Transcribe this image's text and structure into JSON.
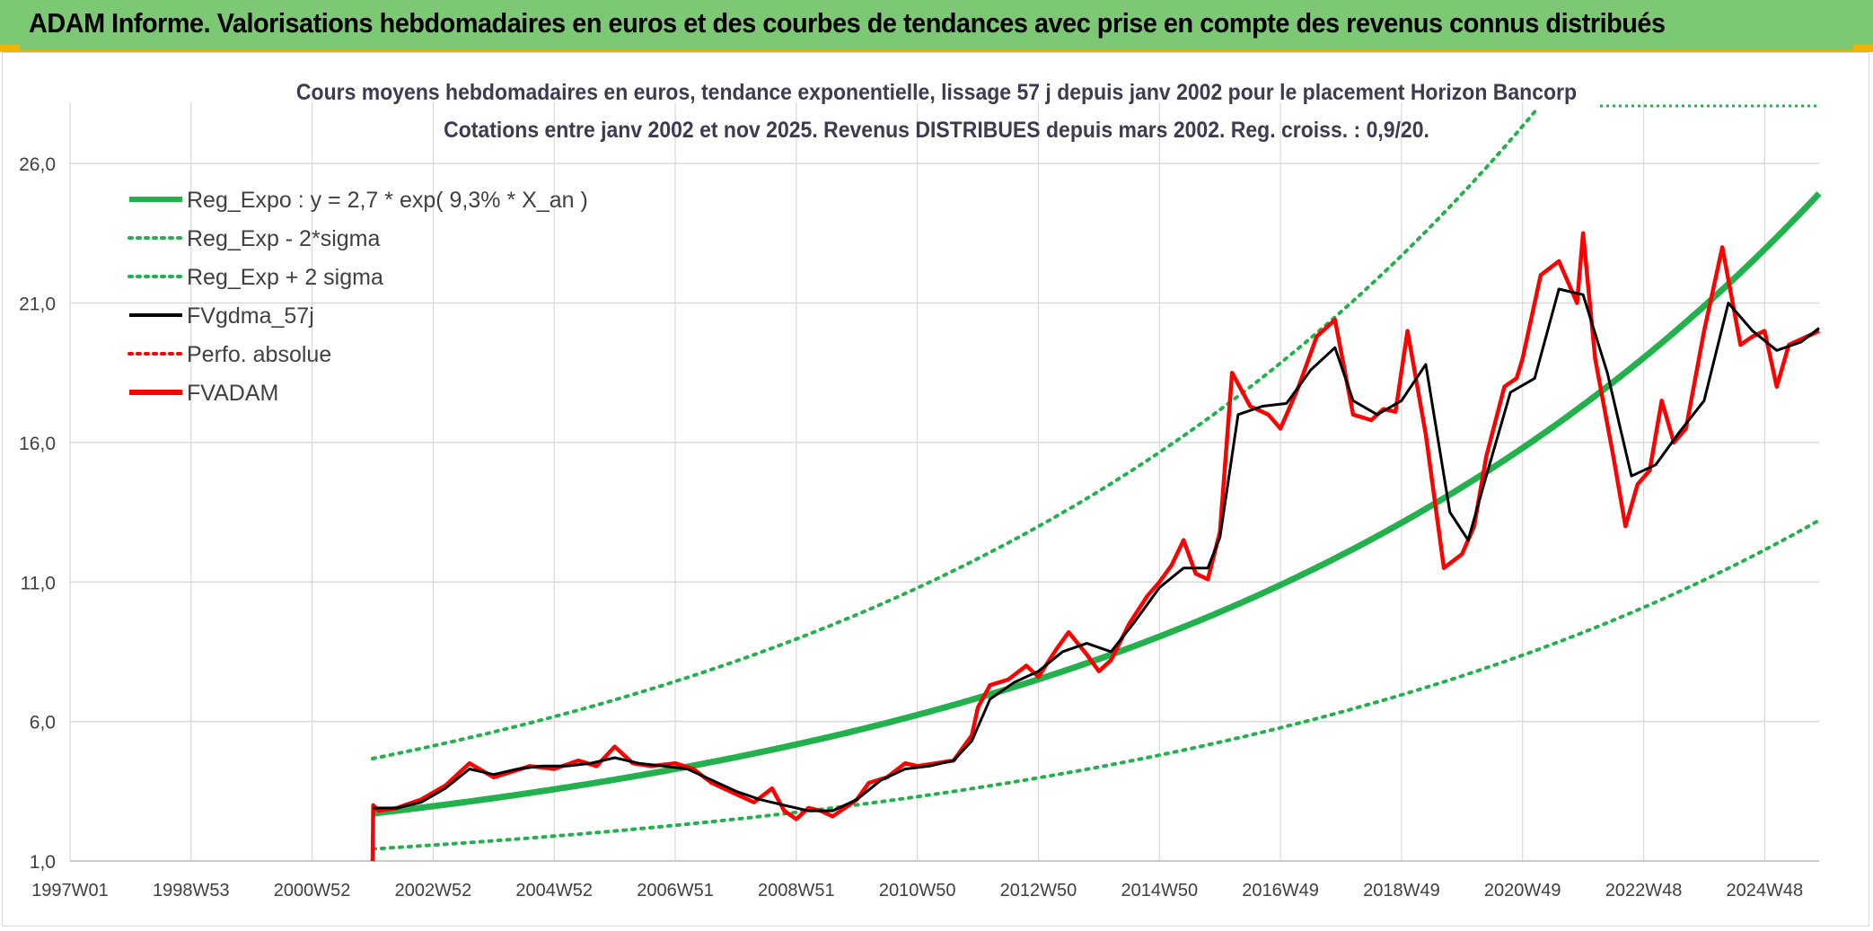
{
  "header": {
    "title": "ADAM Informe. Valorisations hebdomadaires en euros et des courbes de tendances avec prise en compte des revenus connus distribués"
  },
  "colors": {
    "header_bg": "#7dc874",
    "reg_expo": "#22b14c",
    "fvgdma": "#000000",
    "fvadam": "#ff0000",
    "grid": "#d9d9d9"
  },
  "chart_data": {
    "type": "line",
    "title_line1": "Cours moyens hebdomadaires en euros, tendance exponentielle, lissage 57 j depuis janv 2002 pour le placement Horizon Bancorp",
    "title_line2": "Cotations entre janv 2002 et nov 2025. Revenus DISTRIBUES depuis mars 2002. Reg. croiss. : 0,9/20.",
    "x_tick_labels": [
      "1997W01",
      "1998W53",
      "2000W52",
      "2002W52",
      "2004W52",
      "2006W51",
      "2008W51",
      "2010W50",
      "2012W50",
      "2014W50",
      "2016W49",
      "2018W49",
      "2020W49",
      "2022W48",
      "2024W48"
    ],
    "x_range": [
      1997.0,
      2025.9
    ],
    "y_tick_labels": [
      "1,0",
      "6,0",
      "11,0",
      "16,0",
      "21,0",
      "26,0"
    ],
    "y_ticks": [
      1,
      6,
      11,
      16,
      21,
      26
    ],
    "ylim": [
      1,
      28
    ],
    "legend": [
      {
        "label": "Reg_Expo : y = 2,7 * exp( 9,3% *  X_an )",
        "style": "solid-thick",
        "color": "#22b14c"
      },
      {
        "label": "Reg_Exp - 2*sigma",
        "style": "dotted",
        "color": "#22b14c"
      },
      {
        "label": "Reg_Exp + 2 sigma",
        "style": "dotted",
        "color": "#22b14c"
      },
      {
        "label": "FVgdma_57j",
        "style": "solid",
        "color": "#000000"
      },
      {
        "label": "Perfo. absolue",
        "style": "dotted",
        "color": "#ff0000"
      },
      {
        "label": "FVADAM",
        "style": "solid-thick",
        "color": "#ff0000"
      }
    ],
    "regression": {
      "a": 2.7,
      "k": 0.093,
      "x_start": 2002.0,
      "x_end": 2025.9,
      "factor_minus_2sigma": 0.53,
      "factor_plus_2sigma": 1.73
    },
    "series": [
      {
        "name": "FVADAM",
        "x": [
          2002.0,
          2002.01,
          2002.1,
          2002.4,
          2002.8,
          2003.2,
          2003.6,
          2004.0,
          2004.3,
          2004.6,
          2005.0,
          2005.4,
          2005.7,
          2006.0,
          2006.3,
          2006.6,
          2007.0,
          2007.3,
          2007.6,
          2008.0,
          2008.3,
          2008.6,
          2008.8,
          2009.0,
          2009.2,
          2009.4,
          2009.6,
          2009.8,
          2010.0,
          2010.2,
          2010.5,
          2010.8,
          2011.0,
          2011.3,
          2011.6,
          2011.9,
          2012.0,
          2012.2,
          2012.5,
          2012.8,
          2013.0,
          2013.3,
          2013.5,
          2013.8,
          2014.0,
          2014.2,
          2014.5,
          2014.8,
          2015.0,
          2015.2,
          2015.4,
          2015.6,
          2015.8,
          2016.0,
          2016.2,
          2016.5,
          2016.8,
          2017.0,
          2017.3,
          2017.6,
          2017.9,
          2018.2,
          2018.5,
          2018.7,
          2018.9,
          2019.1,
          2019.4,
          2019.7,
          2020.0,
          2020.2,
          2020.4,
          2020.7,
          2020.9,
          2021.0,
          2021.3,
          2021.6,
          2021.9,
          2022.0,
          2022.2,
          2022.5,
          2022.7,
          2022.9,
          2023.1,
          2023.3,
          2023.5,
          2023.7,
          2024.0,
          2024.3,
          2024.6,
          2024.8,
          2025.0,
          2025.2,
          2025.4,
          2025.6,
          2025.9
        ],
        "values": [
          1.0,
          3.0,
          2.8,
          2.9,
          3.2,
          3.7,
          4.5,
          4.0,
          4.2,
          4.4,
          4.3,
          4.6,
          4.4,
          5.1,
          4.5,
          4.4,
          4.5,
          4.3,
          3.8,
          3.4,
          3.1,
          3.6,
          2.8,
          2.5,
          2.9,
          2.8,
          2.6,
          2.9,
          3.2,
          3.8,
          4.0,
          4.5,
          4.4,
          4.5,
          4.6,
          5.5,
          6.5,
          7.3,
          7.5,
          8.0,
          7.6,
          8.6,
          9.2,
          8.4,
          7.8,
          8.2,
          9.5,
          10.5,
          11.0,
          11.6,
          12.5,
          11.3,
          11.1,
          12.8,
          18.5,
          17.3,
          17.0,
          16.5,
          18.0,
          19.8,
          20.4,
          17.0,
          16.8,
          17.2,
          17.1,
          20.0,
          16.3,
          11.5,
          12.0,
          13.0,
          15.5,
          18.0,
          18.3,
          19.0,
          22.0,
          22.5,
          21.0,
          23.5,
          19.0,
          15.5,
          13.0,
          14.5,
          15.0,
          17.5,
          16.0,
          16.5,
          20.0,
          23.0,
          19.5,
          19.8,
          20.0,
          18.0,
          19.5,
          19.7,
          20.0
        ]
      },
      {
        "name": "FVgdma_57j",
        "x": [
          2002.0,
          2002.4,
          2002.8,
          2003.2,
          2003.6,
          2004.0,
          2004.4,
          2004.8,
          2005.2,
          2005.6,
          2006.0,
          2006.4,
          2006.8,
          2007.2,
          2007.6,
          2008.0,
          2008.4,
          2008.8,
          2009.2,
          2009.6,
          2010.0,
          2010.4,
          2010.8,
          2011.2,
          2011.6,
          2011.9,
          2012.2,
          2012.6,
          2013.0,
          2013.4,
          2013.8,
          2014.2,
          2014.6,
          2015.0,
          2015.4,
          2015.8,
          2016.0,
          2016.3,
          2016.7,
          2017.1,
          2017.5,
          2017.9,
          2018.2,
          2018.6,
          2019.0,
          2019.4,
          2019.8,
          2020.1,
          2020.4,
          2020.8,
          2021.2,
          2021.6,
          2022.0,
          2022.4,
          2022.8,
          2023.2,
          2023.6,
          2024.0,
          2024.4,
          2024.8,
          2025.2,
          2025.6,
          2025.9
        ],
        "values": [
          2.9,
          2.9,
          3.1,
          3.6,
          4.3,
          4.1,
          4.3,
          4.4,
          4.4,
          4.5,
          4.7,
          4.5,
          4.4,
          4.3,
          3.9,
          3.5,
          3.2,
          3.0,
          2.8,
          2.8,
          3.2,
          3.9,
          4.3,
          4.4,
          4.6,
          5.3,
          6.8,
          7.4,
          7.8,
          8.5,
          8.8,
          8.5,
          9.6,
          10.8,
          11.5,
          11.5,
          12.6,
          17.0,
          17.3,
          17.4,
          18.6,
          19.4,
          17.5,
          17.0,
          17.5,
          18.8,
          13.5,
          12.5,
          14.8,
          17.8,
          18.3,
          21.5,
          21.3,
          18.5,
          14.8,
          15.2,
          16.4,
          17.5,
          21.0,
          20.0,
          19.3,
          19.6,
          20.1
        ]
      }
    ]
  }
}
